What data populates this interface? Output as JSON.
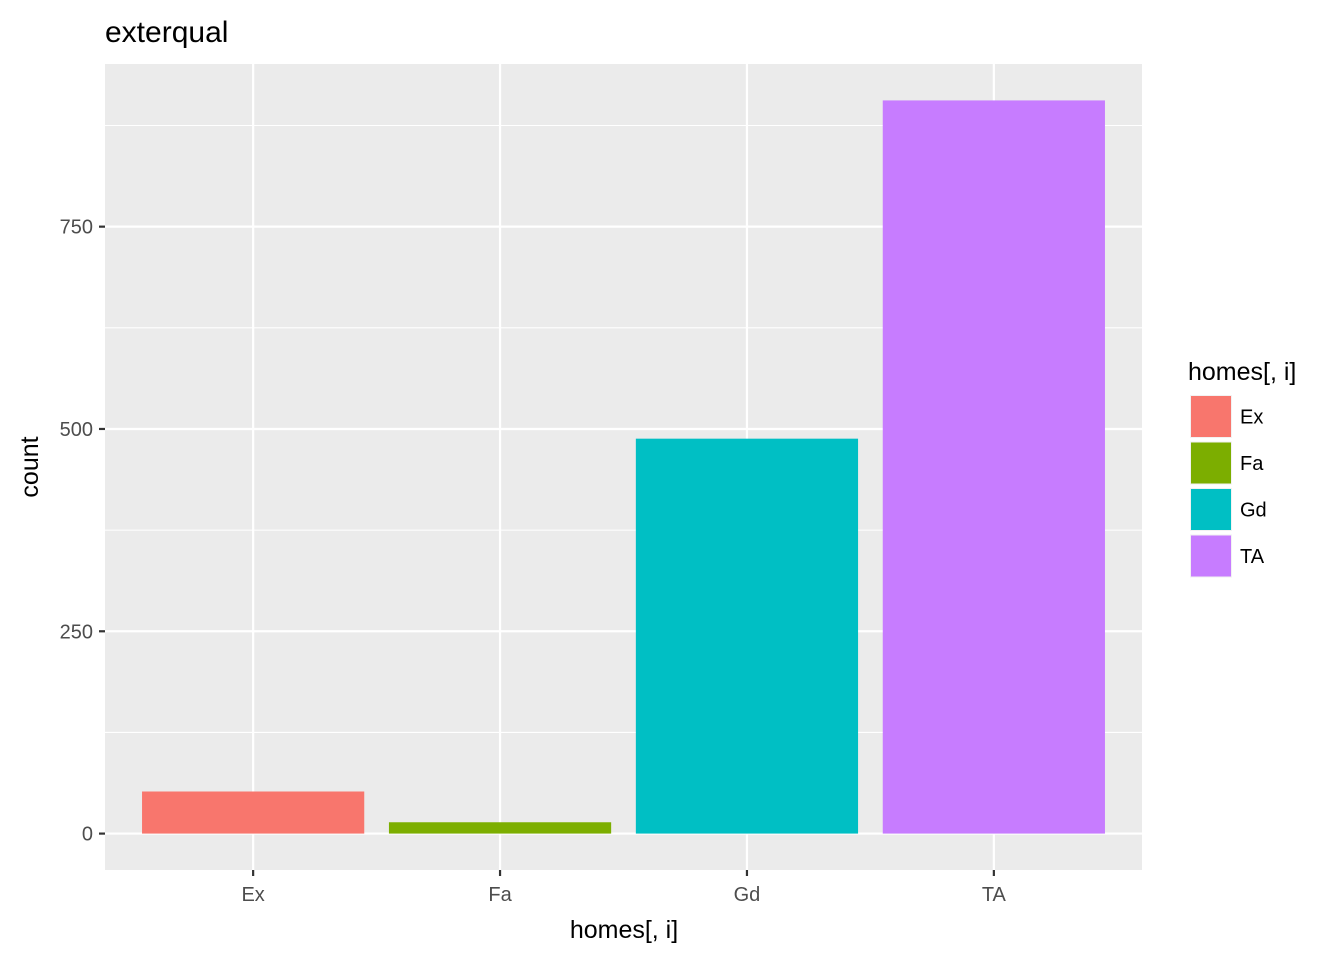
{
  "chart_data": {
    "type": "bar",
    "title": "exterqual",
    "xlabel": "homes[, i]",
    "ylabel": "count",
    "categories": [
      "Ex",
      "Fa",
      "Gd",
      "TA"
    ],
    "values": [
      52,
      14,
      488,
      906
    ],
    "colors": [
      "#F8766D",
      "#7CAE00",
      "#00BFC4",
      "#C77CFF"
    ],
    "ylim": [
      -45,
      951
    ],
    "yticks": [
      0,
      250,
      500,
      750
    ],
    "ytick_labels": [
      "0",
      "250",
      "500",
      "750"
    ],
    "grid": true,
    "legend": {
      "title": "homes[, i]",
      "position": "right",
      "entries": [
        "Ex",
        "Fa",
        "Gd",
        "TA"
      ]
    },
    "background_color": "#EBEBEB",
    "grid_color": "#FFFFFF"
  }
}
